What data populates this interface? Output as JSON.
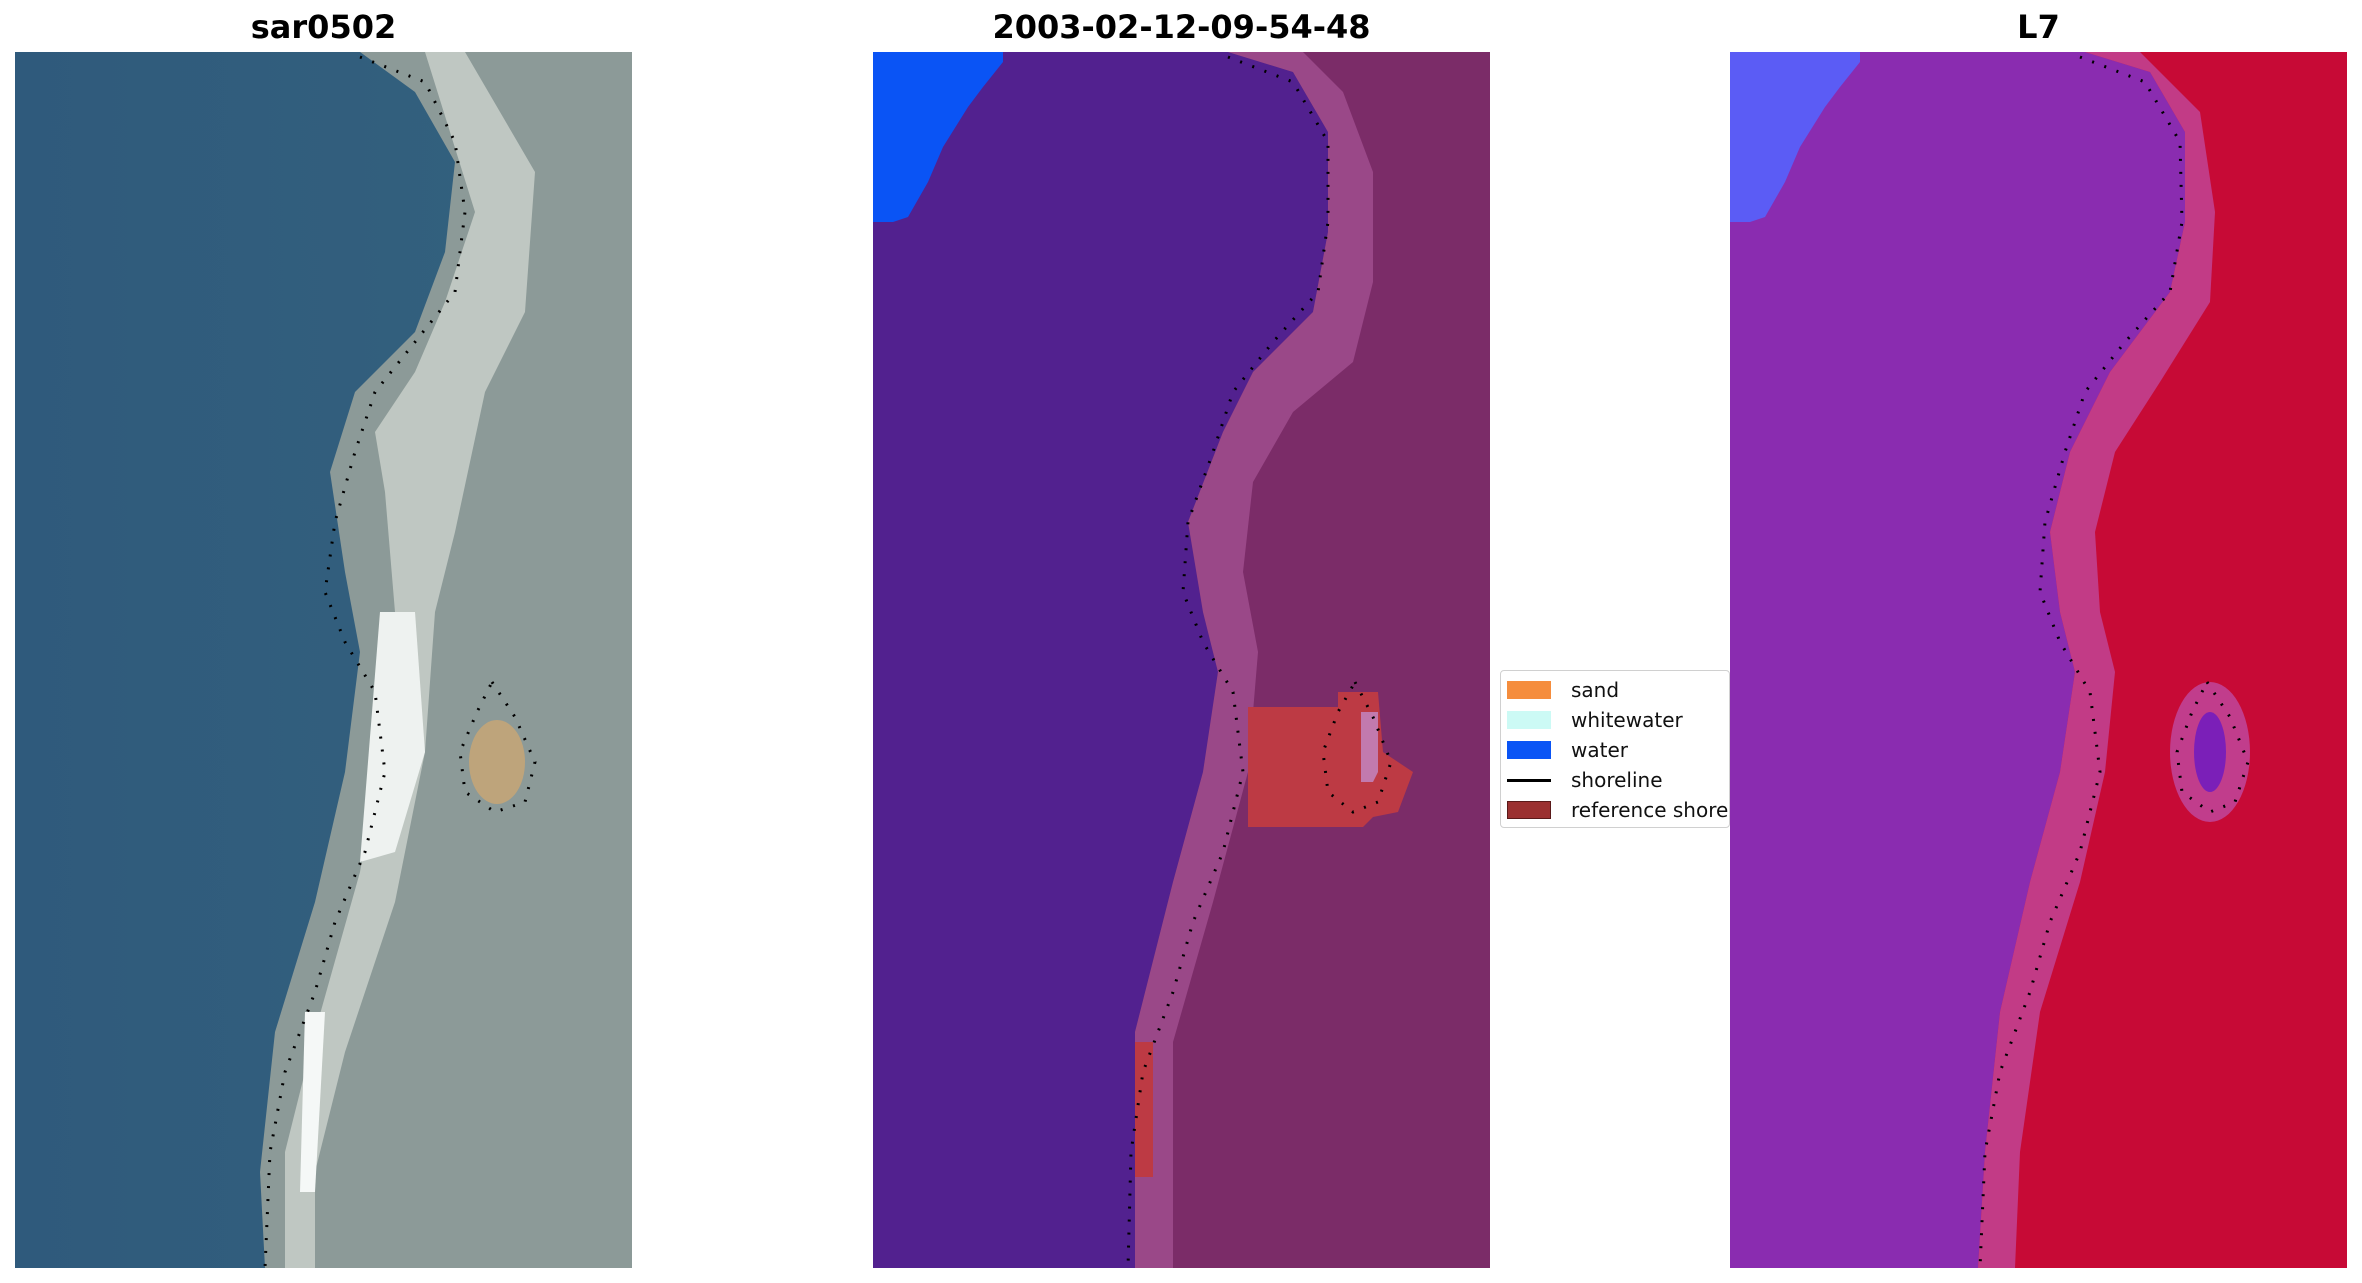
{
  "panels": [
    {
      "id": "rgb",
      "title": "sar0502"
    },
    {
      "id": "classified",
      "title": "2003-02-12-09-54-48"
    },
    {
      "id": "index",
      "title": "L7"
    }
  ],
  "legend": {
    "items": [
      {
        "label": "sand",
        "color": "#f58d3d",
        "kind": "patch"
      },
      {
        "label": "whitewater",
        "color": "#ccfaf5",
        "kind": "patch"
      },
      {
        "label": "water",
        "color": "#0a54f5",
        "kind": "patch"
      },
      {
        "label": "shoreline",
        "color": "#000000",
        "kind": "line"
      },
      {
        "label": "reference shoreline buffer",
        "color": "#9b3131",
        "kind": "patch"
      }
    ]
  },
  "colors": {
    "ocean_rgb": "#2f5a7c",
    "beach_rgb": "#8c9a98",
    "classified_water": "#52218f",
    "classified_land": "#7b2c68",
    "index_water": "#8a2cb0",
    "index_land": "#c70a36"
  }
}
